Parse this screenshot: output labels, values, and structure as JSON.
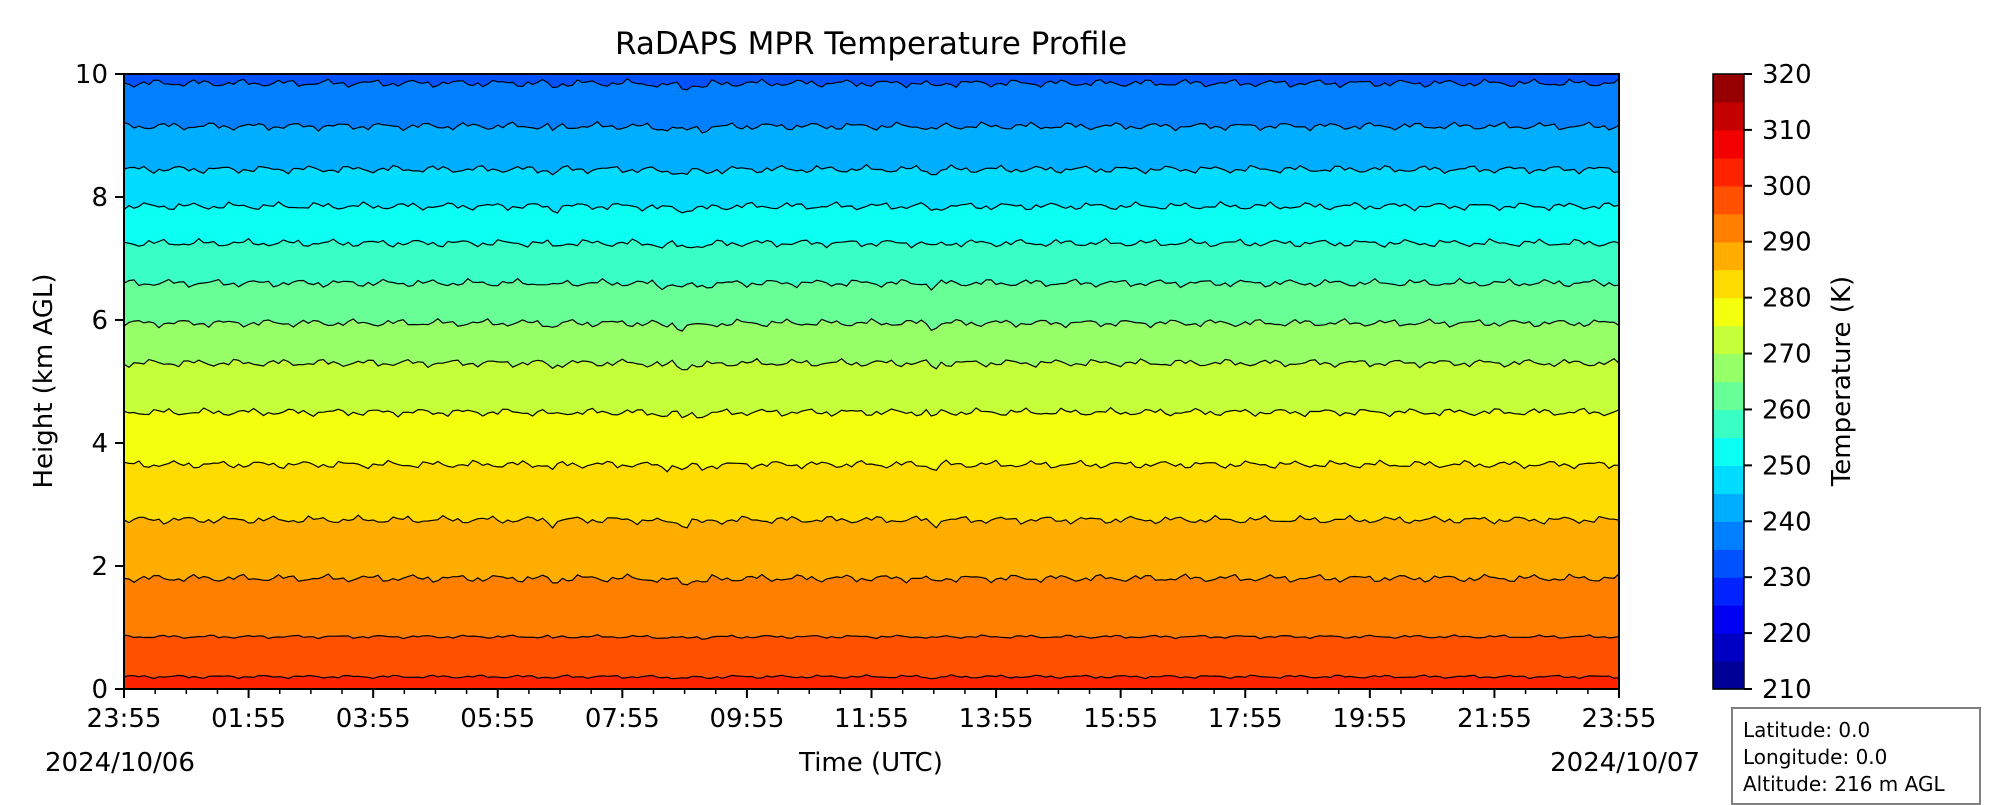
{
  "chart_data": {
    "type": "heatmap",
    "title": "RaDAPS MPR Temperature Profile",
    "xlabel": "Time (UTC)",
    "ylabel": "Height (km AGL)",
    "x_tick_labels": [
      "23:55",
      "01:55",
      "03:55",
      "05:55",
      "07:55",
      "09:55",
      "11:55",
      "13:55",
      "15:55",
      "17:55",
      "19:55",
      "21:55",
      "23:55"
    ],
    "x_date_labels": {
      "start": "2024/10/06",
      "end": "2024/10/07"
    },
    "xlim_hours": [
      0,
      24
    ],
    "ylim": [
      0,
      10
    ],
    "y_ticks": [
      0,
      2,
      4,
      6,
      8,
      10
    ],
    "colorbar": {
      "label": "Temperature (K)",
      "range": [
        210,
        320
      ],
      "step": 5,
      "tick_labels": [
        210,
        220,
        230,
        240,
        250,
        260,
        270,
        280,
        290,
        300,
        310,
        320
      ],
      "colormap": "jet"
    },
    "contour_levels_K": [
      215,
      220,
      225,
      230,
      235,
      240,
      245,
      250,
      255,
      260,
      265,
      270,
      275,
      280,
      285,
      290,
      295,
      300
    ],
    "approx_contour_heights_km": {
      "300": 0.2,
      "295": 0.85,
      "290": 1.8,
      "285": 2.75,
      "280": 3.65,
      "275": 4.5,
      "270": 5.3,
      "265": 5.95,
      "260": 6.6,
      "255": 7.25,
      "250": 7.85,
      "245": 8.45,
      "240": 9.15,
      "235": 9.85
    }
  },
  "info_box": {
    "latitude": "Latitude: 0.0",
    "longitude": "Longitude: 0.0",
    "altitude": "Altitude: 216 m AGL"
  }
}
